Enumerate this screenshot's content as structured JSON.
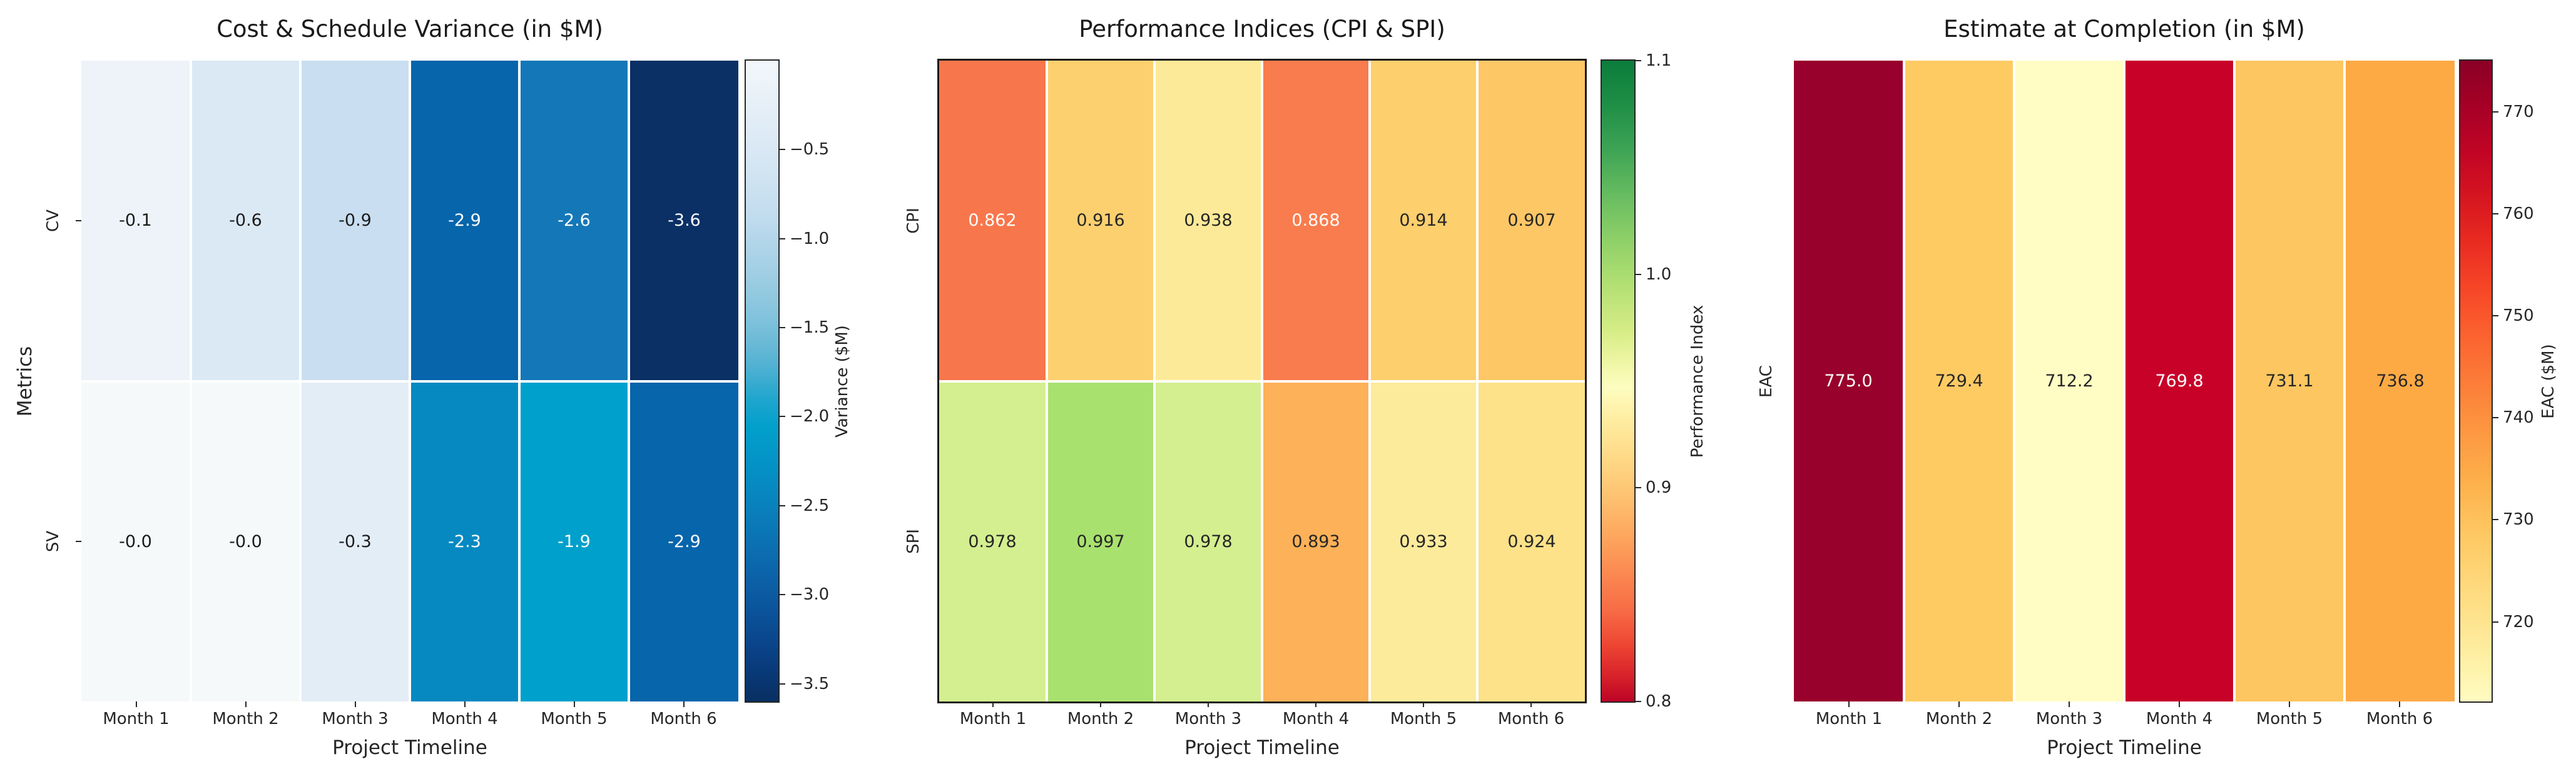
{
  "figure": {
    "background": "#ffffff",
    "text_color": "#262626",
    "title_color": "#1a1a1a",
    "grid_line_color": "#ffffff"
  },
  "chart_data": [
    {
      "type": "heatmap",
      "title": "Cost & Schedule Variance (in $M)",
      "xlabel": "Project Timeline",
      "ylabel": "Metrics",
      "x_categories": [
        "Month 1",
        "Month 2",
        "Month 3",
        "Month 4",
        "Month 5",
        "Month 6"
      ],
      "y_categories": [
        "CV",
        "SV"
      ],
      "series": [
        {
          "name": "CV",
          "values": [
            -0.1,
            -0.6,
            -0.9,
            -2.9,
            -2.6,
            -3.6
          ],
          "labels": [
            "-0.1",
            "-0.6",
            "-0.9",
            "-2.9",
            "-2.6",
            "-3.6"
          ],
          "cell_colors": [
            "#edf3f9",
            "#dbe9f5",
            "#c9def0",
            "#0765ab",
            "#1478b8",
            "#0a3065"
          ],
          "label_colors": [
            "#1b1b1b",
            "#1b1b1b",
            "#1b1b1b",
            "#ffffff",
            "#ffffff",
            "#ffffff"
          ]
        },
        {
          "name": "SV",
          "values": [
            -0.0,
            -0.0,
            -0.3,
            -2.3,
            -1.9,
            -2.9
          ],
          "labels": [
            "-0.0",
            "-0.0",
            "-0.3",
            "-2.3",
            "-1.9",
            "-2.9"
          ],
          "cell_colors": [
            "#f5f9f9",
            "#f5f9f9",
            "#e3edf6",
            "#0689c1",
            "#00a0cc",
            "#0765ab"
          ],
          "label_colors": [
            "#1b1b1b",
            "#1b1b1b",
            "#1b1b1b",
            "#ffffff",
            "#ffffff",
            "#ffffff"
          ]
        }
      ],
      "frame": false,
      "colorbar": {
        "label": "Variance ($M)",
        "vmin": -3.6,
        "vmax": 0.0,
        "ticks": [
          {
            "value": -0.5,
            "label": "−0.5"
          },
          {
            "value": -1.0,
            "label": "−1.0"
          },
          {
            "value": -1.5,
            "label": "−1.5"
          },
          {
            "value": -2.0,
            "label": "−2.0"
          },
          {
            "value": -2.5,
            "label": "−2.5"
          },
          {
            "value": -3.0,
            "label": "−3.0"
          },
          {
            "value": -3.5,
            "label": "−3.5"
          }
        ],
        "gradient": [
          [
            0,
            "#f2f7fb"
          ],
          [
            0.08,
            "#e4eef7"
          ],
          [
            0.16,
            "#d5e6f3"
          ],
          [
            0.24,
            "#c2dcee"
          ],
          [
            0.32,
            "#a5d0e5"
          ],
          [
            0.4,
            "#83c3dc"
          ],
          [
            0.47,
            "#57b3d3"
          ],
          [
            0.53,
            "#1ea5ce"
          ],
          [
            0.57,
            "#02a0cb"
          ],
          [
            0.63,
            "#0492c6"
          ],
          [
            0.7,
            "#0980bb"
          ],
          [
            0.78,
            "#0c69ae"
          ],
          [
            0.86,
            "#0b539b"
          ],
          [
            0.93,
            "#093f83"
          ],
          [
            1,
            "#082f62"
          ]
        ]
      }
    },
    {
      "type": "heatmap",
      "title": "Performance Indices (CPI & SPI)",
      "xlabel": "Project Timeline",
      "ylabel": "",
      "x_categories": [
        "Month 1",
        "Month 2",
        "Month 3",
        "Month 4",
        "Month 5",
        "Month 6"
      ],
      "y_categories": [
        "CPI",
        "SPI"
      ],
      "series": [
        {
          "name": "CPI",
          "values": [
            0.862,
            0.916,
            0.938,
            0.868,
            0.914,
            0.907
          ],
          "labels": [
            "0.862",
            "0.916",
            "0.938",
            "0.868",
            "0.914",
            "0.907"
          ],
          "cell_colors": [
            "#f8764b",
            "#fdd06f",
            "#fcea98",
            "#f87c4e",
            "#fdcf6d",
            "#fdc766"
          ],
          "label_colors": [
            "#ffffff",
            "#262626",
            "#262626",
            "#ffffff",
            "#262626",
            "#262626"
          ]
        },
        {
          "name": "SPI",
          "values": [
            0.978,
            0.997,
            0.978,
            0.893,
            0.933,
            0.924
          ],
          "labels": [
            "0.978",
            "0.997",
            "0.978",
            "0.893",
            "0.933",
            "0.924"
          ],
          "cell_colors": [
            "#d4ef90",
            "#a9e16f",
            "#d4ef90",
            "#fdb158",
            "#fdeb9c",
            "#fde289"
          ],
          "label_colors": [
            "#262626",
            "#262626",
            "#262626",
            "#262626",
            "#262626",
            "#262626"
          ]
        }
      ],
      "frame": true,
      "colorbar": {
        "label": "Performance Index",
        "vmin": 0.8,
        "vmax": 1.1,
        "ticks": [
          {
            "value": 1.1,
            "label": "1.1"
          },
          {
            "value": 1.0,
            "label": "1.0"
          },
          {
            "value": 0.9,
            "label": "0.9"
          },
          {
            "value": 0.8,
            "label": "0.8"
          }
        ],
        "gradient": [
          [
            0,
            "#0b7c3b"
          ],
          [
            0.07,
            "#1f8f46"
          ],
          [
            0.14,
            "#3ea455"
          ],
          [
            0.21,
            "#67bc60"
          ],
          [
            0.28,
            "#8ed068"
          ],
          [
            0.35,
            "#b2e073"
          ],
          [
            0.42,
            "#d5ec85"
          ],
          [
            0.47,
            "#eef6a4"
          ],
          [
            0.51,
            "#fdfdc0"
          ],
          [
            0.56,
            "#feeda1"
          ],
          [
            0.62,
            "#fed986"
          ],
          [
            0.68,
            "#fdc271"
          ],
          [
            0.74,
            "#fda75e"
          ],
          [
            0.8,
            "#fb8951"
          ],
          [
            0.86,
            "#f76a45"
          ],
          [
            0.91,
            "#ee4733"
          ],
          [
            0.96,
            "#d8222a"
          ],
          [
            1,
            "#bd0326"
          ]
        ]
      }
    },
    {
      "type": "heatmap",
      "title": "Estimate at Completion (in $M)",
      "xlabel": "Project Timeline",
      "ylabel": "",
      "x_categories": [
        "Month 1",
        "Month 2",
        "Month 3",
        "Month 4",
        "Month 5",
        "Month 6"
      ],
      "y_categories": [
        "EAC"
      ],
      "series": [
        {
          "name": "EAC",
          "values": [
            775.0,
            729.4,
            712.2,
            769.8,
            731.1,
            736.8
          ],
          "labels": [
            "775.0",
            "729.4",
            "712.2",
            "769.8",
            "731.1",
            "736.8"
          ],
          "cell_colors": [
            "#98012b",
            "#fecb63",
            "#fffcc4",
            "#c80129",
            "#fdc660",
            "#fdaa45"
          ],
          "label_colors": [
            "#ffffff",
            "#262626",
            "#262626",
            "#ffffff",
            "#262626",
            "#262626"
          ]
        }
      ],
      "frame": false,
      "colorbar": {
        "label": "EAC ($M)",
        "vmin": 712.2,
        "vmax": 775.0,
        "ticks": [
          {
            "value": 770,
            "label": "770"
          },
          {
            "value": 760,
            "label": "760"
          },
          {
            "value": 750,
            "label": "750"
          },
          {
            "value": 740,
            "label": "740"
          },
          {
            "value": 730,
            "label": "730"
          },
          {
            "value": 720,
            "label": "720"
          }
        ],
        "gradient": [
          [
            0,
            "#8b0026"
          ],
          [
            0.07,
            "#a50026"
          ],
          [
            0.14,
            "#c00425"
          ],
          [
            0.21,
            "#d51420"
          ],
          [
            0.28,
            "#e82a21"
          ],
          [
            0.35,
            "#f64427"
          ],
          [
            0.42,
            "#fb5f2e"
          ],
          [
            0.5,
            "#fc7c38"
          ],
          [
            0.58,
            "#fd9841"
          ],
          [
            0.66,
            "#fdb14c"
          ],
          [
            0.74,
            "#fec863"
          ],
          [
            0.82,
            "#fed97c"
          ],
          [
            0.89,
            "#fee795"
          ],
          [
            0.95,
            "#fef3ab"
          ],
          [
            1,
            "#fffbc1"
          ]
        ]
      }
    }
  ]
}
